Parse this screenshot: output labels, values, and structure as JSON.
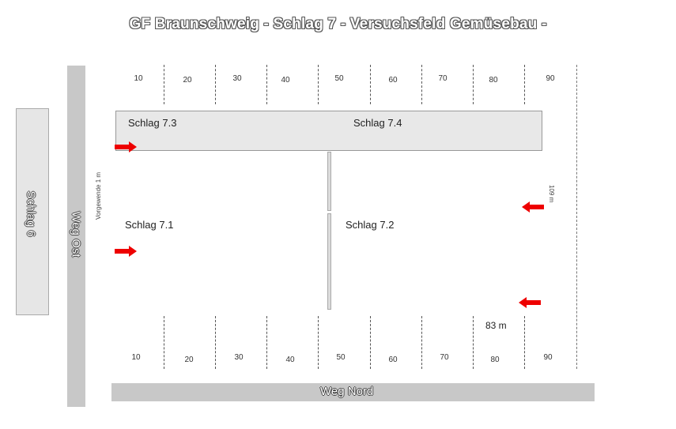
{
  "title": "GF Braunschweig - Schlag 7 - Versuchsfeld Gemüsebau -",
  "roads": {
    "left_box": "Schlag 6",
    "west": "Weg Ost",
    "north_bottom": "Weg Nord"
  },
  "plots": {
    "p73": "Schlag 7.3",
    "p74": "Schlag 7.4",
    "p71": "Schlag 7.1",
    "p72": "Schlag 7.2"
  },
  "side_labels": {
    "left_vertical": "Vorgewende 1 m",
    "right_vertical": "109 m"
  },
  "distance_label": "83 m",
  "scale_top": [
    "10",
    "20",
    "30",
    "40",
    "50",
    "60",
    "70",
    "80",
    "90"
  ],
  "scale_bottom": [
    "10",
    "20",
    "30",
    "40",
    "50",
    "60",
    "70",
    "80",
    "90"
  ],
  "arrow_color": "#ee0000"
}
